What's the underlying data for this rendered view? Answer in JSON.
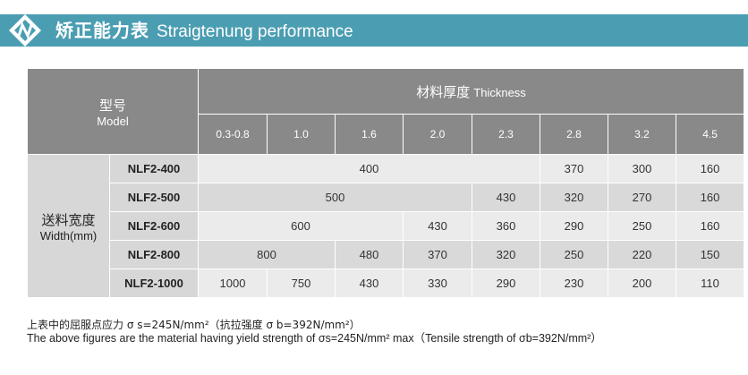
{
  "header": {
    "title_cn": "矫正能力表",
    "title_en": "Straigtenung performance"
  },
  "table": {
    "model_cn": "型号",
    "model_en": "Model",
    "thickness_cn": "材料厚度",
    "thickness_en": "Thickness",
    "width_cn": "送料宽度",
    "width_en": "Width(mm)",
    "thickness_columns": [
      "0.3-0.8",
      "1.0",
      "1.6",
      "2.0",
      "2.3",
      "2.8",
      "3.2",
      "4.5"
    ],
    "rows": [
      {
        "model": "NLF2-400",
        "cells": [
          "400",
          "370",
          "300",
          "160"
        ]
      },
      {
        "model": "NLF2-500",
        "cells": [
          "500",
          "430",
          "320",
          "270",
          "160"
        ]
      },
      {
        "model": "NLF2-600",
        "cells": [
          "600",
          "430",
          "360",
          "290",
          "250",
          "160"
        ]
      },
      {
        "model": "NLF2-800",
        "cells": [
          "800",
          "480",
          "370",
          "320",
          "250",
          "220",
          "150"
        ]
      },
      {
        "model": "NLF2-1000",
        "cells": [
          "1000",
          "750",
          "430",
          "330",
          "290",
          "230",
          "200",
          "110"
        ]
      }
    ]
  },
  "note": {
    "cn": "上表中的屈服点应力 σ s=245N/mm²（抗拉强度 σ b=392N/mm²）",
    "en": "The above figures are the material having yield strength of σs=245N/mm²  max（Tensile strength of σb=392N/mm²）"
  },
  "colors": {
    "header_band": "#4b9db2",
    "header_cell": "#898989",
    "row_light": "#ebebeb",
    "row_dark": "#d9d9d9"
  }
}
